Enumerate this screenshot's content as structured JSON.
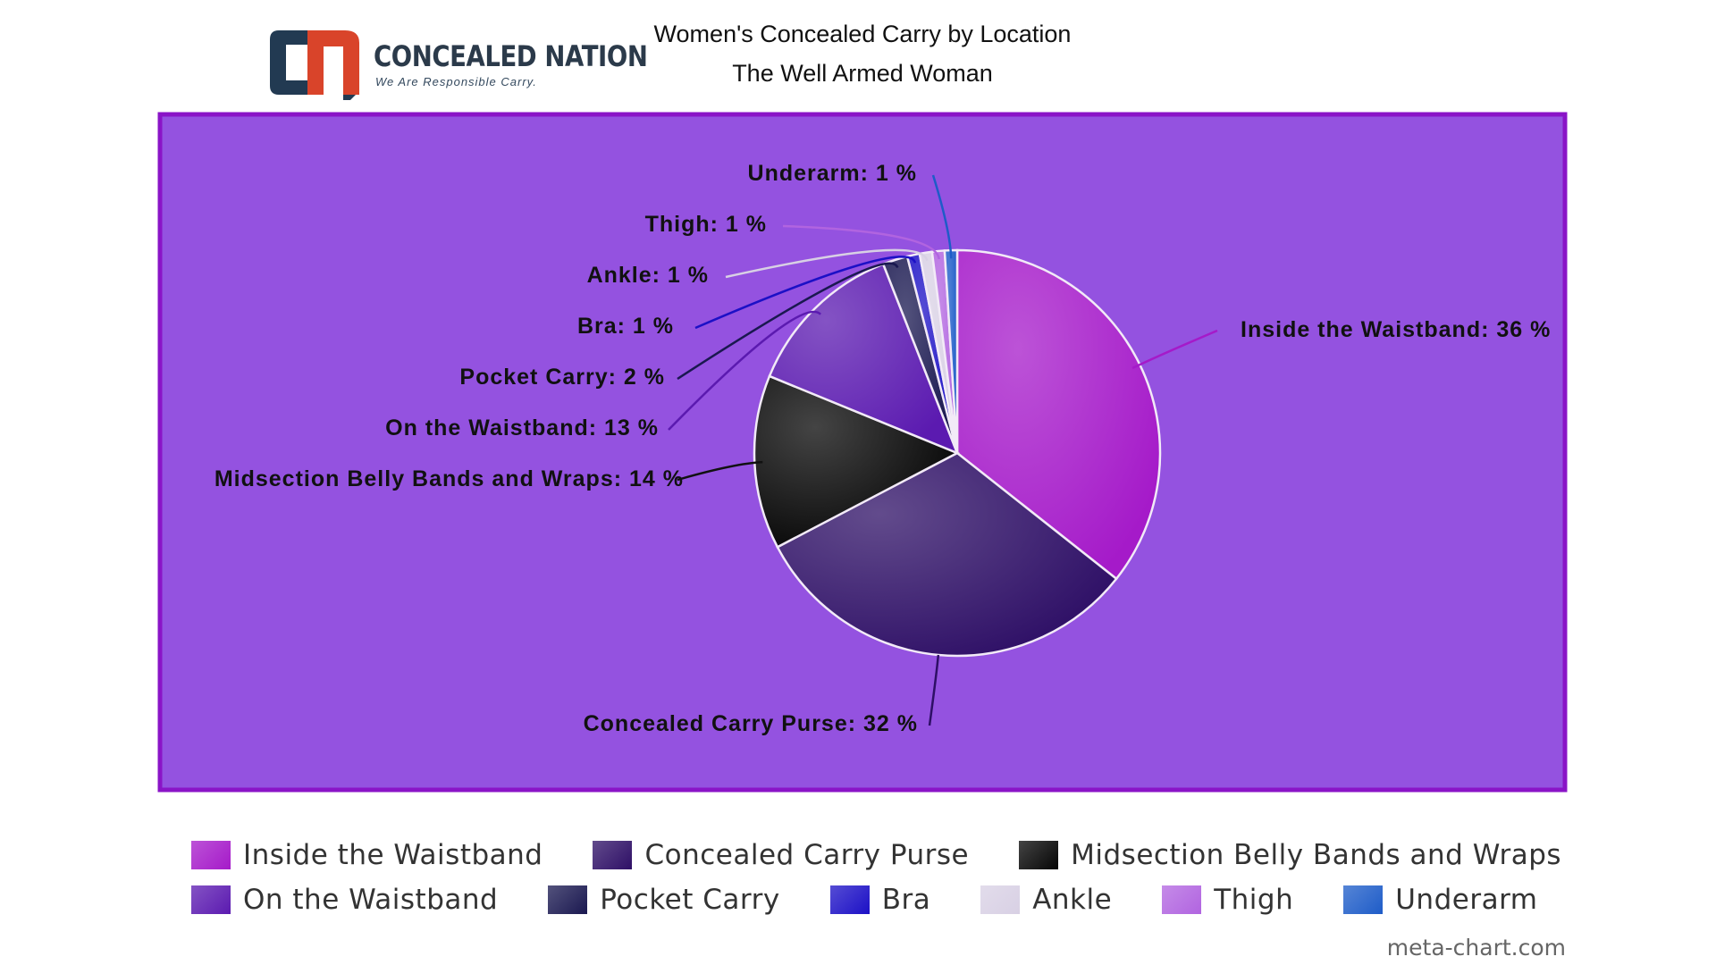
{
  "logo": {
    "name": "CONCEALED NATION",
    "tagline": "We Are Responsible Carry."
  },
  "credit": "meta-chart.com",
  "chart_data": {
    "type": "pie",
    "title": "Women's Concealed Carry by Location",
    "subtitle": "The Well Armed Woman",
    "background_color": "#9452e0",
    "border_color": "#8a14c7",
    "legend_placement": "bottom",
    "slices": [
      {
        "name": "Inside the Waistband",
        "value": 36,
        "label": "Inside the Waistband: 36 %",
        "color": "#a51ac9"
      },
      {
        "name": "Concealed Carry Purse",
        "value": 32,
        "label": "Concealed Carry Purse: 32 %",
        "color": "#2e0f66"
      },
      {
        "name": "Midsection Belly Bands and Wraps",
        "value": 14,
        "label": "Midsection Belly Bands and Wraps: 14 %",
        "color": "#050505"
      },
      {
        "name": "On the Waistband",
        "value": 13,
        "label": "On the Waistband: 13 %",
        "color": "#5b1ab0"
      },
      {
        "name": "Pocket Carry",
        "value": 2,
        "label": "Pocket Carry: 2 %",
        "color": "#1a1850"
      },
      {
        "name": "Bra",
        "value": 1,
        "label": "Bra: 1 %",
        "color": "#1c10c6"
      },
      {
        "name": "Ankle",
        "value": 1,
        "label": "Ankle: 1 %",
        "color": "#d8d0e4"
      },
      {
        "name": "Thigh",
        "value": 1,
        "label": "Thigh: 1 %",
        "color": "#b164e0"
      },
      {
        "name": "Underarm",
        "value": 1,
        "label": "Underarm: 1 %",
        "color": "#1e5cc8"
      }
    ]
  }
}
